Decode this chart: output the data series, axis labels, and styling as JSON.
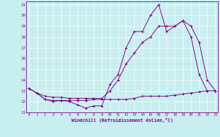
{
  "xlabel": "Windchill (Refroidissement éolien,°C)",
  "bg_color": "#c8eef0",
  "line_color": "#800080",
  "grid_color": "#b0d8da",
  "x_min": 0,
  "x_max": 23,
  "y_min": 11,
  "y_max": 21,
  "series1_x": [
    0,
    1,
    2,
    3,
    4,
    5,
    6,
    7,
    8,
    9,
    10,
    11,
    12,
    13,
    14,
    15,
    16,
    17,
    18,
    19,
    20,
    21,
    22,
    23
  ],
  "series1_y": [
    13.2,
    12.8,
    12.2,
    12.0,
    12.1,
    12.0,
    11.7,
    11.4,
    11.6,
    11.6,
    13.6,
    14.5,
    17.0,
    18.5,
    18.5,
    20.0,
    21.0,
    18.5,
    19.0,
    19.5,
    18.0,
    14.5,
    13.0,
    13.0
  ],
  "series2_x": [
    0,
    1,
    2,
    3,
    4,
    5,
    6,
    7,
    8,
    9,
    10,
    11,
    12,
    13,
    14,
    15,
    16,
    17,
    18,
    19,
    20,
    21,
    22,
    23
  ],
  "series2_y": [
    13.2,
    12.8,
    12.2,
    12.1,
    12.1,
    12.1,
    12.1,
    12.1,
    12.2,
    12.2,
    12.2,
    12.2,
    12.2,
    12.3,
    12.5,
    12.5,
    12.5,
    12.5,
    12.6,
    12.7,
    12.8,
    12.9,
    13.0,
    13.0
  ],
  "series3_x": [
    0,
    1,
    2,
    3,
    4,
    5,
    6,
    7,
    8,
    9,
    10,
    11,
    12,
    13,
    14,
    15,
    16,
    17,
    18,
    19,
    20,
    21,
    22,
    23
  ],
  "series3_y": [
    13.2,
    12.8,
    12.5,
    12.4,
    12.4,
    12.3,
    12.3,
    12.3,
    12.3,
    12.3,
    13.0,
    14.0,
    15.5,
    16.5,
    17.5,
    18.0,
    19.0,
    19.0,
    19.0,
    19.5,
    19.0,
    17.5,
    14.0,
    13.0
  ]
}
